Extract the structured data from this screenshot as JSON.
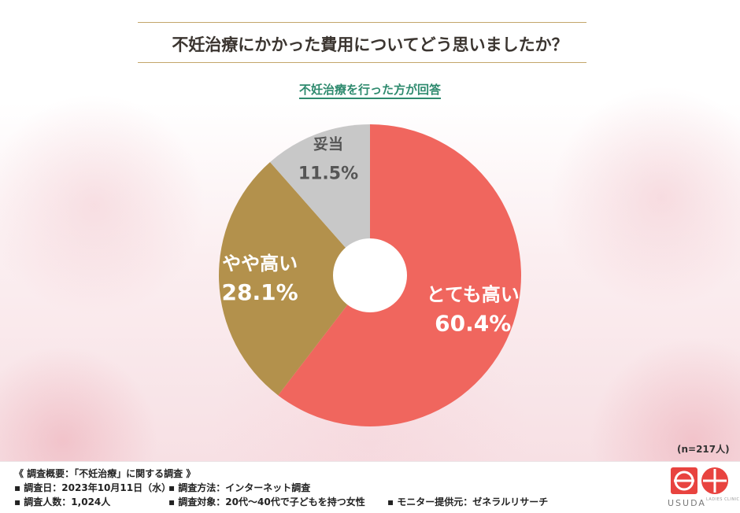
{
  "title": "不妊治療にかかった費用についてどう思いましたか？",
  "subtitle": "不妊治療を行った方が回答",
  "n_label": "(n=217人)",
  "chart_data": {
    "type": "pie",
    "donut": true,
    "start_angle": "12 o'clock, clockwise",
    "slices": [
      {
        "label": "とても高い",
        "value": 60.4,
        "value_text": "60.4%",
        "color": "#f0665e",
        "text_color": "#ffffff"
      },
      {
        "label": "やや高い",
        "value": 28.1,
        "value_text": "28.1%",
        "color": "#b3914c",
        "text_color": "#ffffff"
      },
      {
        "label": "妥当",
        "value": 11.5,
        "value_text": "11.5%",
        "color": "#c8c8c8",
        "text_color": "#555555"
      }
    ]
  },
  "footer": {
    "overview": "《 調査概要：「不妊治療」に関する調査 》",
    "date": "▪ 調査日：2023年10月11日（水）",
    "count": "▪ 調査人数：1,024人",
    "method": "▪ 調査方法：インターネット調査",
    "target": "▪ 調査対象：20代～40代で子どもを持つ女性",
    "provider": "▪ モニター提供元：ゼネラルリサーチ"
  },
  "logo": {
    "name": "USUDA",
    "sub": "LADIES CLINIC",
    "color": "#e8433f"
  }
}
